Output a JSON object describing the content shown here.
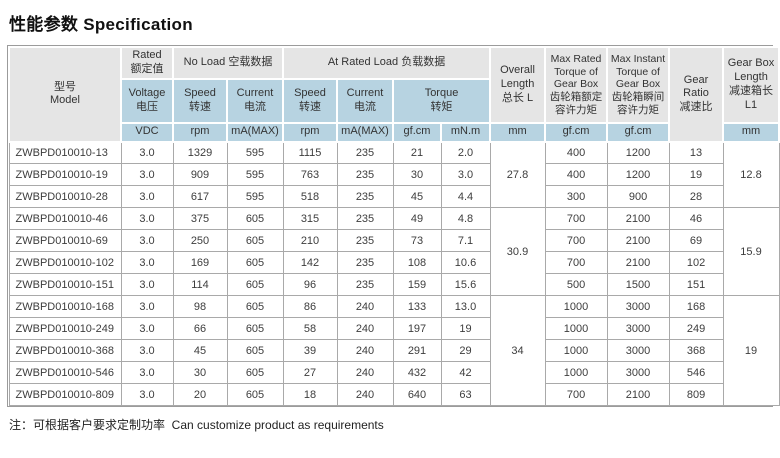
{
  "title": "性能参数 Specification",
  "note": "注：可根据客户要求定制功率  Can customize product as requirements",
  "colors": {
    "header_gray": "#e5e5e5",
    "header_blue": "#b7d3e1",
    "grid_border": "#a9a9a9",
    "text": "#3d3d3d"
  },
  "table": {
    "header": {
      "model": "型号\nModel",
      "rated": "Rated\n额定值",
      "no_load": "No Load 空载数据",
      "at_rated_load": "At Rated Load 负载数据",
      "voltage": "Voltage\n电压",
      "speed": "Speed\n转速",
      "current": "Current\n电流",
      "torque": "Torque\n转矩",
      "overall_length": "Overall\nLength\n总长 L",
      "max_rated_torque": "Max Rated\nTorque of\nGear Box\n齿轮箱额定\n容许力矩",
      "max_instant_torque": "Max Instant\nTorque of\nGear Box\n齿轮箱瞬间\n容许力矩",
      "gear_ratio": "Gear Ratio\n减速比",
      "gearbox_length": "Gear Box\nLength\n减速箱长\nL1",
      "units": {
        "vdc": "VDC",
        "rpm": "rpm",
        "ma_max": "mA(MAX)",
        "gf_cm": "gf.cm",
        "mn_m": "mN.m",
        "mm": "mm"
      }
    },
    "rows": [
      [
        "ZWBPD010010-13",
        "3.0",
        "1329",
        "595",
        "1115",
        "235",
        "21",
        "2.0",
        "400",
        "1200",
        "13"
      ],
      [
        "ZWBPD010010-19",
        "3.0",
        "909",
        "595",
        "763",
        "235",
        "30",
        "3.0",
        "400",
        "1200",
        "19"
      ],
      [
        "ZWBPD010010-28",
        "3.0",
        "617",
        "595",
        "518",
        "235",
        "45",
        "4.4",
        "300",
        "900",
        "28"
      ],
      [
        "ZWBPD010010-46",
        "3.0",
        "375",
        "605",
        "315",
        "235",
        "49",
        "4.8",
        "700",
        "2100",
        "46"
      ],
      [
        "ZWBPD010010-69",
        "3.0",
        "250",
        "605",
        "210",
        "235",
        "73",
        "7.1",
        "700",
        "2100",
        "69"
      ],
      [
        "ZWBPD010010-102",
        "3.0",
        "169",
        "605",
        "142",
        "235",
        "108",
        "10.6",
        "700",
        "2100",
        "102"
      ],
      [
        "ZWBPD010010-151",
        "3.0",
        "114",
        "605",
        "96",
        "235",
        "159",
        "15.6",
        "500",
        "1500",
        "151"
      ],
      [
        "ZWBPD010010-168",
        "3.0",
        "98",
        "605",
        "86",
        "240",
        "133",
        "13.0",
        "1000",
        "3000",
        "168"
      ],
      [
        "ZWBPD010010-249",
        "3.0",
        "66",
        "605",
        "58",
        "240",
        "197",
        "19",
        "1000",
        "3000",
        "249"
      ],
      [
        "ZWBPD010010-368",
        "3.0",
        "45",
        "605",
        "39",
        "240",
        "291",
        "29",
        "1000",
        "3000",
        "368"
      ],
      [
        "ZWBPD010010-546",
        "3.0",
        "30",
        "605",
        "27",
        "240",
        "432",
        "42",
        "1000",
        "3000",
        "546"
      ],
      [
        "ZWBPD010010-809",
        "3.0",
        "20",
        "605",
        "18",
        "240",
        "640",
        "63",
        "700",
        "2100",
        "809"
      ]
    ],
    "merged": {
      "overall_length": [
        {
          "value": "27.8",
          "span": 3
        },
        {
          "value": "30.9",
          "span": 4
        },
        {
          "value": "34",
          "span": 5
        }
      ],
      "gearbox_length": [
        {
          "value": "12.8",
          "span": 3
        },
        {
          "value": "15.9",
          "span": 4
        },
        {
          "value": "19",
          "span": 5
        }
      ]
    }
  }
}
